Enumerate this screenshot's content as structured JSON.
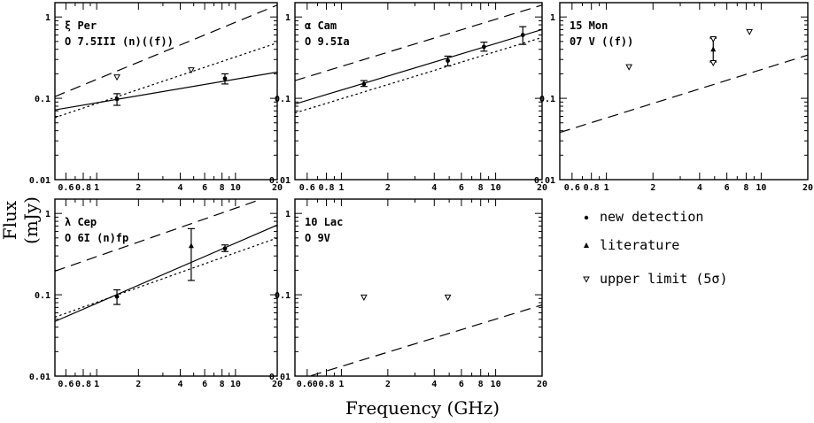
{
  "figure": {
    "ylabel": "Flux (mJy)",
    "xlabel": "Frequency (GHz)",
    "legend": [
      {
        "marker": "circle",
        "label": "new detection"
      },
      {
        "marker": "triangle-up",
        "label": "literature"
      },
      {
        "marker": "triangle-down-open",
        "label": "upper limit (5σ)"
      }
    ]
  },
  "chart_data": [
    {
      "type": "scatter",
      "title": "ξ Per",
      "subtitle": "O 7.5III (n)((f))",
      "xlim": [
        0.5,
        20
      ],
      "ylim": [
        0.01,
        1.5
      ],
      "xscale": "log",
      "yscale": "log",
      "x_ticks": [
        {
          "v": 0.6,
          "t": "0.6"
        },
        {
          "v": 0.8,
          "t": "0.8"
        },
        {
          "v": 1,
          "t": "1"
        },
        {
          "v": 2,
          "t": "2"
        },
        {
          "v": 4,
          "t": "4"
        },
        {
          "v": 6,
          "t": "6"
        },
        {
          "v": 8,
          "t": "8"
        },
        {
          "v": 10,
          "t": "10"
        },
        {
          "v": 20,
          "t": "20"
        }
      ],
      "y_ticks": [
        {
          "v": 0.01,
          "t": "0.01"
        },
        {
          "v": 0.1,
          "t": "0.1"
        },
        {
          "v": 1,
          "t": "1"
        }
      ],
      "points": [
        {
          "x": 1.4,
          "y": 0.098,
          "lo": 0.082,
          "hi": 0.114,
          "kind": "detection"
        },
        {
          "x": 8.4,
          "y": 0.175,
          "lo": 0.15,
          "hi": 0.2,
          "kind": "detection"
        }
      ],
      "limits": [
        {
          "x": 1.4,
          "y": 0.18
        },
        {
          "x": 4.8,
          "y": 0.22
        }
      ],
      "lines": [
        {
          "style": "solid",
          "x1": 0.5,
          "y1": 0.072,
          "x2": 20,
          "y2": 0.21
        },
        {
          "style": "dashed",
          "x1": 0.5,
          "y1": 0.105,
          "x2": 20,
          "y2": 1.4
        },
        {
          "style": "dotted",
          "x1": 0.5,
          "y1": 0.058,
          "x2": 20,
          "y2": 0.48
        }
      ]
    },
    {
      "type": "scatter",
      "title": "α Cam",
      "subtitle": "O 9.5Ia",
      "xlim": [
        0.5,
        20
      ],
      "ylim": [
        0.01,
        1.5
      ],
      "xscale": "log",
      "yscale": "log",
      "x_ticks": [
        {
          "v": 0.6,
          "t": "0.6"
        },
        {
          "v": 0.8,
          "t": "0.8"
        },
        {
          "v": 1,
          "t": "1"
        },
        {
          "v": 2,
          "t": "2"
        },
        {
          "v": 4,
          "t": "4"
        },
        {
          "v": 6,
          "t": "6"
        },
        {
          "v": 8,
          "t": "8"
        },
        {
          "v": 10,
          "t": "10"
        },
        {
          "v": 20,
          "t": "20"
        }
      ],
      "y_ticks": [
        {
          "v": 0.01,
          "t": "0.01"
        },
        {
          "v": 0.1,
          "t": "0.1"
        },
        {
          "v": 1,
          "t": "1"
        }
      ],
      "points": [
        {
          "x": 1.4,
          "y": 0.15,
          "lo": 0.14,
          "hi": 0.165,
          "kind": "detection"
        },
        {
          "x": 4.9,
          "y": 0.29,
          "lo": 0.25,
          "hi": 0.33,
          "kind": "detection"
        },
        {
          "x": 8.4,
          "y": 0.43,
          "lo": 0.38,
          "hi": 0.49,
          "kind": "detection"
        },
        {
          "x": 15,
          "y": 0.6,
          "lo": 0.46,
          "hi": 0.76,
          "kind": "detection"
        }
      ],
      "limits": [],
      "lines": [
        {
          "style": "solid",
          "x1": 0.5,
          "y1": 0.085,
          "x2": 20,
          "y2": 0.7
        },
        {
          "style": "dashed",
          "x1": 0.5,
          "y1": 0.165,
          "x2": 20,
          "y2": 1.4
        },
        {
          "style": "dotted",
          "x1": 0.5,
          "y1": 0.066,
          "x2": 20,
          "y2": 0.56
        }
      ]
    },
    {
      "type": "scatter",
      "title": "15 Mon",
      "subtitle": "07 V ((f))",
      "xlim": [
        0.5,
        20
      ],
      "ylim": [
        0.01,
        1.5
      ],
      "xscale": "log",
      "yscale": "log",
      "x_ticks": [
        {
          "v": 0.6,
          "t": "0.6"
        },
        {
          "v": 0.8,
          "t": "0.8"
        },
        {
          "v": 1,
          "t": "1"
        },
        {
          "v": 2,
          "t": "2"
        },
        {
          "v": 4,
          "t": "4"
        },
        {
          "v": 6,
          "t": "6"
        },
        {
          "v": 8,
          "t": "8"
        },
        {
          "v": 10,
          "t": "10"
        },
        {
          "v": 20,
          "t": "20"
        }
      ],
      "y_ticks": [
        {
          "v": 0.01,
          "t": "0.01"
        },
        {
          "v": 0.1,
          "t": "0.1"
        },
        {
          "v": 1,
          "t": "1"
        }
      ],
      "points": [
        {
          "x": 4.9,
          "y": 0.4,
          "lo": 0.28,
          "hi": 0.55,
          "kind": "literature"
        }
      ],
      "limits": [
        {
          "x": 1.4,
          "y": 0.24
        },
        {
          "x": 4.9,
          "y": 0.53
        },
        {
          "x": 4.9,
          "y": 0.27
        },
        {
          "x": 8.4,
          "y": 0.65
        }
      ],
      "lines": [
        {
          "style": "dashed",
          "x1": 0.5,
          "y1": 0.038,
          "x2": 20,
          "y2": 0.34
        }
      ]
    },
    {
      "type": "scatter",
      "title": "λ Cep",
      "subtitle": "O 6I (n)fp",
      "xlim": [
        0.5,
        20
      ],
      "ylim": [
        0.01,
        1.5
      ],
      "xscale": "log",
      "yscale": "log",
      "x_ticks": [
        {
          "v": 0.6,
          "t": "0.6"
        },
        {
          "v": 0.8,
          "t": "0.8"
        },
        {
          "v": 1,
          "t": "1"
        },
        {
          "v": 2,
          "t": "2"
        },
        {
          "v": 4,
          "t": "4"
        },
        {
          "v": 6,
          "t": "6"
        },
        {
          "v": 8,
          "t": "8"
        },
        {
          "v": 10,
          "t": "10"
        },
        {
          "v": 20,
          "t": "20"
        }
      ],
      "y_ticks": [
        {
          "v": 0.01,
          "t": "0.01"
        },
        {
          "v": 0.1,
          "t": "0.1"
        },
        {
          "v": 1,
          "t": "1"
        }
      ],
      "points": [
        {
          "x": 1.4,
          "y": 0.095,
          "lo": 0.076,
          "hi": 0.115,
          "kind": "detection"
        },
        {
          "x": 4.8,
          "y": 0.4,
          "lo": 0.15,
          "hi": 0.65,
          "kind": "literature"
        },
        {
          "x": 8.4,
          "y": 0.37,
          "lo": 0.34,
          "hi": 0.41,
          "kind": "detection"
        }
      ],
      "limits": [],
      "lines": [
        {
          "style": "solid",
          "x1": 0.5,
          "y1": 0.047,
          "x2": 20,
          "y2": 0.72
        },
        {
          "style": "dashed",
          "x1": 0.5,
          "y1": 0.195,
          "x2": 20,
          "y2": 1.75
        },
        {
          "style": "dotted",
          "x1": 0.5,
          "y1": 0.053,
          "x2": 20,
          "y2": 0.5
        }
      ]
    },
    {
      "type": "scatter",
      "title": "10 Lac",
      "subtitle": "O 9V",
      "xlim": [
        0.5,
        20
      ],
      "ylim": [
        0.01,
        1.5
      ],
      "xscale": "log",
      "yscale": "log",
      "x_ticks": [
        {
          "v": 0.6,
          "t": "0.60"
        },
        {
          "v": 0.8,
          "t": "0.8"
        },
        {
          "v": 1,
          "t": "1"
        },
        {
          "v": 2,
          "t": "2"
        },
        {
          "v": 4,
          "t": "4"
        },
        {
          "v": 6,
          "t": "6"
        },
        {
          "v": 8,
          "t": "8"
        },
        {
          "v": 10,
          "t": "10"
        },
        {
          "v": 20,
          "t": "20"
        }
      ],
      "y_ticks": [
        {
          "v": 0.01,
          "t": "0.01"
        },
        {
          "v": 0.1,
          "t": "0.1"
        },
        {
          "v": 1,
          "t": "1"
        }
      ],
      "points": [],
      "limits": [
        {
          "x": 1.4,
          "y": 0.092
        },
        {
          "x": 4.9,
          "y": 0.092
        }
      ],
      "lines": [
        {
          "style": "dashed",
          "x1": 0.5,
          "y1": 0.0088,
          "x2": 20,
          "y2": 0.075
        }
      ]
    }
  ]
}
